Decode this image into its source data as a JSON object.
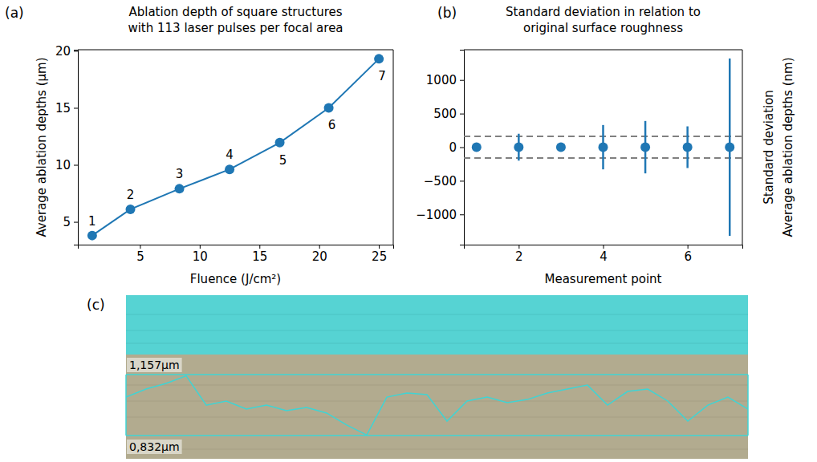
{
  "chart_data": [
    {
      "type": "line",
      "panel": "(a)",
      "title": [
        "Ablation depth of square structures",
        "with 113 laser pulses per focal area"
      ],
      "xlabel": "Fluence (J/cm²)",
      "ylabel": "Average ablation depths (µm)",
      "x": [
        1.0,
        4.2,
        8.3,
        12.5,
        16.7,
        20.8,
        25.0
      ],
      "values": [
        3.8,
        6.1,
        7.9,
        9.6,
        11.95,
        15.0,
        19.3
      ],
      "point_labels": [
        "1",
        "2",
        "3",
        "4",
        "5",
        "6",
        "7"
      ],
      "color": "#1f77b4",
      "marker": "circle",
      "xlim": [
        -0.2,
        26.2
      ],
      "xticks": [
        5,
        10,
        15,
        20,
        25
      ],
      "ylim": [
        3.0,
        20.1
      ],
      "yticks": [
        5,
        10,
        15,
        20
      ]
    },
    {
      "type": "scatter",
      "panel": "(b)",
      "title": [
        "Standard deviation in relation to",
        "original surface roughness"
      ],
      "xlabel": "Measurement point",
      "ylabel": [
        "Standard deviation",
        "Average ablation depths (nm)"
      ],
      "x": [
        1,
        2,
        3,
        4,
        5,
        6,
        7
      ],
      "values": [
        0,
        0,
        0,
        0,
        0,
        0,
        0
      ],
      "errors": [
        40,
        200,
        60,
        330,
        390,
        310,
        1320
      ],
      "reference_lines": [
        162.5,
        -162.5
      ],
      "color": "#1f77b4",
      "marker": "circle",
      "xlim": [
        0.7,
        7.3
      ],
      "xticks": [
        2,
        4,
        6
      ],
      "ylim": [
        -1450,
        1450
      ],
      "yticks": [
        {
          "value": -1000,
          "label": "−1000"
        },
        {
          "value": -500,
          "label": "−500"
        },
        0,
        500,
        1000
      ]
    },
    {
      "type": "line",
      "panel": "(c)",
      "values": [
        1.037,
        1.08,
        1.11,
        1.15,
        0.994,
        1.016,
        0.973,
        0.994,
        0.965,
        0.982,
        0.952,
        0.888,
        0.835,
        1.037,
        1.059,
        1.05,
        0.909,
        1.016,
        1.037,
        1.007,
        1.024,
        1.059,
        1.08,
        1.101,
        0.994,
        1.067,
        1.08,
        1.016,
        0.909,
        0.994,
        1.037,
        0.973
      ],
      "color": "#3fd4d4",
      "ylim": [
        0.832,
        1.157
      ],
      "yticks": [
        {
          "value": 1.157,
          "label": "1,157µm"
        },
        {
          "value": 0.832,
          "label": "0,832µm"
        }
      ],
      "tick_labels": "y"
    }
  ]
}
